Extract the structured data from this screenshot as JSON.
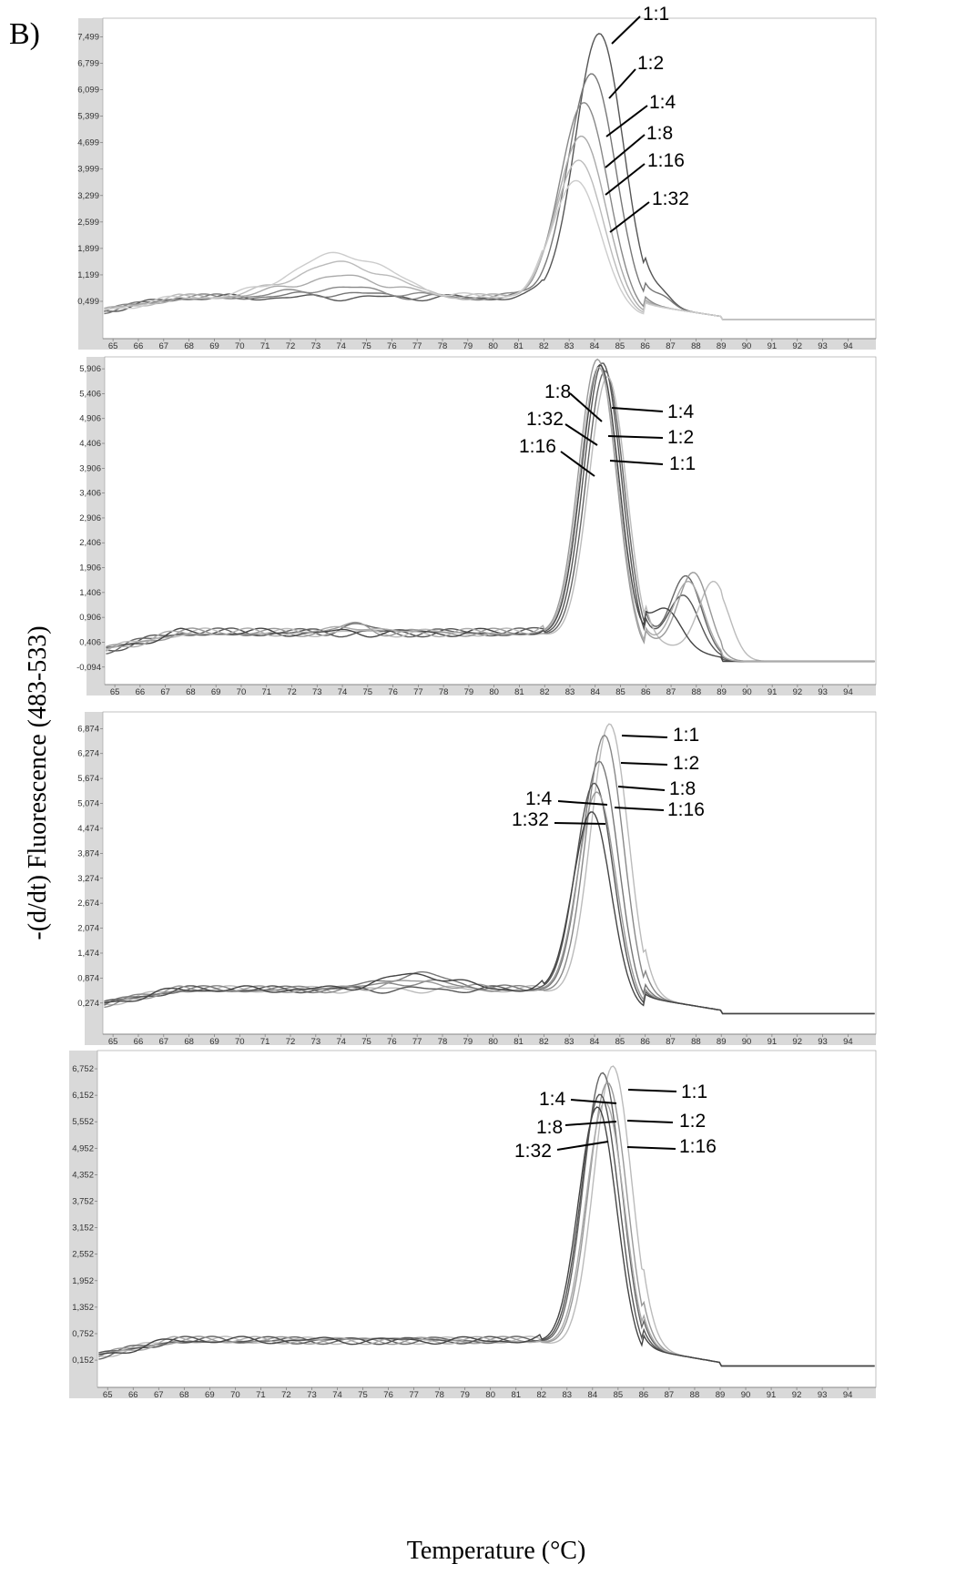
{
  "figure": {
    "panel_label": "B)",
    "ylabel": "-(d/dt) Fluorescence (483-533)",
    "xlabel": "Temperature (°C)"
  },
  "chart_data": [
    {
      "type": "line",
      "x_ticks": [
        65,
        66,
        67,
        68,
        69,
        70,
        71,
        72,
        73,
        74,
        75,
        76,
        77,
        78,
        79,
        80,
        81,
        82,
        83,
        84,
        85,
        86,
        87,
        88,
        89,
        90,
        91,
        92,
        93,
        94
      ],
      "y_ticks": [
        "0,499",
        "1,199",
        "1,899",
        "2,599",
        "3,299",
        "3,999",
        "4,699",
        "5,399",
        "6,099",
        "6,799",
        "7,499"
      ],
      "xlim": [
        64.6,
        95.1
      ],
      "ylim": [
        -0.2,
        7.8
      ],
      "series": [
        {
          "name": "1:1",
          "peak_x": 84.2,
          "peak_y": 7.3,
          "mid_y": 0.9,
          "color": "#555555"
        },
        {
          "name": "1:2",
          "peak_x": 83.9,
          "peak_y": 6.2,
          "mid_y": 1.0,
          "color": "#777777"
        },
        {
          "name": "1:4",
          "peak_x": 83.6,
          "peak_y": 5.4,
          "mid_y": 1.15,
          "color": "#888888"
        },
        {
          "name": "1:8",
          "peak_x": 83.5,
          "peak_y": 4.5,
          "mid_y": 1.45,
          "color": "#aaaaaa"
        },
        {
          "name": "1:16",
          "peak_x": 83.4,
          "peak_y": 3.85,
          "mid_y": 1.8,
          "color": "#bbbbbb"
        },
        {
          "name": "1:32",
          "peak_x": 83.3,
          "peak_y": 3.3,
          "mid_y": 2.05,
          "color": "#cccccc"
        }
      ]
    },
    {
      "type": "line",
      "x_ticks": [
        65,
        66,
        67,
        68,
        69,
        70,
        71,
        72,
        73,
        74,
        75,
        76,
        77,
        78,
        79,
        80,
        81,
        82,
        83,
        84,
        85,
        86,
        87,
        88,
        89,
        90,
        91,
        92,
        93,
        94
      ],
      "y_ticks": [
        "-0,094",
        "0,406",
        "0,906",
        "1,406",
        "1,906",
        "2,406",
        "2,906",
        "3,406",
        "3,906",
        "4,406",
        "4,906",
        "5,406",
        "5,906"
      ],
      "xlim": [
        64.6,
        95.1
      ],
      "ylim": [
        -0.3,
        6.0
      ],
      "series": [
        {
          "name": "1:4",
          "peak_x": 84.3,
          "peak_y": 5.75,
          "shoulder_x": 87.5,
          "shoulder_y": 1.1,
          "color": "#555555"
        },
        {
          "name": "1:2",
          "peak_x": 84.4,
          "peak_y": 5.6,
          "shoulder_x": 87.6,
          "shoulder_y": 1.5,
          "color": "#666666"
        },
        {
          "name": "1:1",
          "peak_x": 84.5,
          "peak_y": 5.5,
          "shoulder_x": 88.7,
          "shoulder_y": 1.5,
          "color": "#bbbbbb"
        },
        {
          "name": "1:8",
          "peak_x": 84.1,
          "peak_y": 5.8,
          "shoulder_x": 87.9,
          "shoulder_y": 1.6,
          "color": "#999999"
        },
        {
          "name": "1:32",
          "peak_x": 84.2,
          "peak_y": 5.7,
          "shoulder_x": 86.8,
          "shoulder_y": 0.75,
          "color": "#444444"
        },
        {
          "name": "1:16",
          "peak_x": 84.15,
          "peak_y": 5.65,
          "shoulder_x": 87.7,
          "shoulder_y": 1.4,
          "color": "#aaaaaa"
        }
      ]
    },
    {
      "type": "line",
      "x_ticks": [
        65,
        66,
        67,
        68,
        69,
        70,
        71,
        72,
        73,
        74,
        75,
        76,
        77,
        78,
        79,
        80,
        81,
        82,
        83,
        84,
        85,
        86,
        87,
        88,
        89,
        90,
        91,
        92,
        93,
        94
      ],
      "y_ticks": [
        "0,274",
        "0,874",
        "1,474",
        "2,074",
        "2,674",
        "3,274",
        "3,874",
        "4,474",
        "5,074",
        "5,674",
        "6,274",
        "6,874"
      ],
      "xlim": [
        64.6,
        95.1
      ],
      "ylim": [
        -0.3,
        7.1
      ],
      "series": [
        {
          "name": "1:1",
          "peak_x": 84.6,
          "peak_y": 6.75,
          "color": "#bbbbbb"
        },
        {
          "name": "1:2",
          "peak_x": 84.4,
          "peak_y": 6.45,
          "color": "#888888"
        },
        {
          "name": "1:8",
          "peak_x": 84.2,
          "peak_y": 5.8,
          "color": "#777777"
        },
        {
          "name": "1:4",
          "peak_x": 84.0,
          "peak_y": 5.25,
          "color": "#555555"
        },
        {
          "name": "1:16",
          "peak_x": 84.1,
          "peak_y": 5.05,
          "color": "#999999"
        },
        {
          "name": "1:32",
          "peak_x": 83.9,
          "peak_y": 4.55,
          "color": "#444444"
        }
      ]
    },
    {
      "type": "line",
      "x_ticks": [
        65,
        66,
        67,
        68,
        69,
        70,
        71,
        72,
        73,
        74,
        75,
        76,
        77,
        78,
        79,
        80,
        81,
        82,
        83,
        84,
        85,
        86,
        87,
        88,
        89,
        90,
        91,
        92,
        93,
        94
      ],
      "y_ticks": [
        "0,152",
        "0,752",
        "1,352",
        "1,952",
        "2,552",
        "3,152",
        "3,752",
        "4,352",
        "4,952",
        "5,552",
        "6,152",
        "6,752"
      ],
      "xlim": [
        64.6,
        95.1
      ],
      "ylim": [
        -0.3,
        7.0
      ],
      "series": [
        {
          "name": "1:1",
          "peak_x": 84.8,
          "peak_y": 6.6,
          "color": "#bbbbbb"
        },
        {
          "name": "1:4",
          "peak_x": 84.4,
          "peak_y": 6.4,
          "color": "#666666"
        },
        {
          "name": "1:2",
          "peak_x": 84.6,
          "peak_y": 6.2,
          "color": "#999999"
        },
        {
          "name": "1:8",
          "peak_x": 84.3,
          "peak_y": 5.9,
          "color": "#555555"
        },
        {
          "name": "1:16",
          "peak_x": 84.5,
          "peak_y": 5.75,
          "color": "#aaaaaa"
        },
        {
          "name": "1:32",
          "peak_x": 84.2,
          "peak_y": 5.6,
          "color": "#444444"
        }
      ]
    }
  ]
}
